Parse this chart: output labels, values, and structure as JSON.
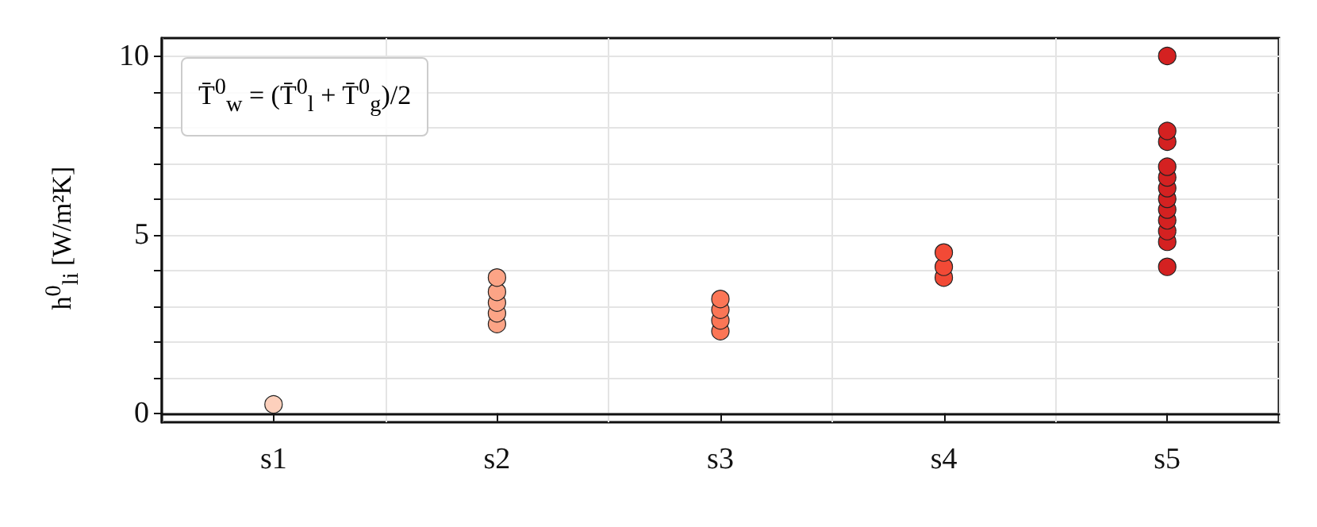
{
  "chart_data": {
    "type": "scatter",
    "categories": [
      "s1",
      "s2",
      "s3",
      "s4",
      "s5"
    ],
    "ylabel": "h$^{0}$$_{li}$ [W/m²K]",
    "annotations": [
      "T̄$^{0}$$_{w}$ = (T̄$^{0}$$_{l}$ + T̄$^{0}$$_{g}$)/2"
    ],
    "ylim": [
      -0.25,
      10.5
    ],
    "yticks": [
      0,
      {
        "value": 1,
        "label": null
      },
      {
        "value": 2,
        "label": null
      },
      {
        "value": 3,
        "label": null
      },
      {
        "value": 4,
        "label": null
      },
      5,
      {
        "value": 6,
        "label": null
      },
      {
        "value": 7,
        "label": null
      },
      {
        "value": 8,
        "label": null
      },
      {
        "value": 9,
        "label": null
      },
      10
    ],
    "grid": true,
    "marker": "circle",
    "series": [
      {
        "color": "#fdd0bc",
        "x": [
          "s1"
        ],
        "values": [
          0.25
        ]
      },
      {
        "color": "#fca486",
        "x": [
          "s2",
          "s2",
          "s2",
          "s2",
          "s2"
        ],
        "values": [
          2.5,
          2.8,
          3.1,
          3.4,
          3.8
        ]
      },
      {
        "color": "#fb7656",
        "x": [
          "s3",
          "s3",
          "s3",
          "s3"
        ],
        "values": [
          2.3,
          2.6,
          2.9,
          3.2
        ]
      },
      {
        "color": "#f24a36",
        "x": [
          "s4",
          "s4",
          "s4"
        ],
        "values": [
          3.8,
          4.1,
          4.5
        ]
      },
      {
        "color": "#d42121",
        "x": [
          "s5",
          "s5",
          "s5",
          "s5",
          "s5",
          "s5",
          "s5",
          "s5",
          "s5",
          "s5",
          "s5",
          "s5"
        ],
        "values": [
          4.1,
          4.8,
          5.1,
          5.4,
          5.7,
          6.0,
          6.3,
          6.6,
          6.9,
          7.6,
          7.9,
          10.0
        ]
      }
    ]
  }
}
